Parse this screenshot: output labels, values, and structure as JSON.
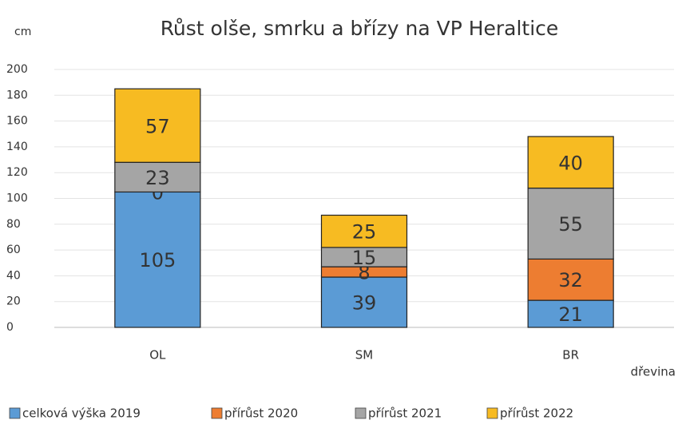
{
  "chart_data": {
    "type": "bar",
    "stacked": true,
    "title": "Růst olše, smrku a břízy na VP Heraltice",
    "y_label": "cm",
    "x_label": "dřevina",
    "categories": [
      "OL",
      "SM",
      "BR"
    ],
    "series": [
      {
        "name": "celková výška 2019",
        "color": "#5b9bd5",
        "values": [
          105,
          39,
          21
        ]
      },
      {
        "name": "přírůst 2020",
        "color": "#ed7d31",
        "values": [
          0,
          8,
          32
        ]
      },
      {
        "name": "přírůst 2021",
        "color": "#a5a5a5",
        "values": [
          23,
          15,
          55
        ]
      },
      {
        "name": "přírůst 2022",
        "color": "#f7bb22",
        "values": [
          57,
          25,
          40
        ]
      }
    ],
    "ylim": [
      0,
      200
    ],
    "yticks": [
      0,
      20,
      40,
      60,
      80,
      100,
      120,
      140,
      160,
      180,
      200
    ],
    "grid": true,
    "legend": "bottom",
    "data_labels": true
  }
}
